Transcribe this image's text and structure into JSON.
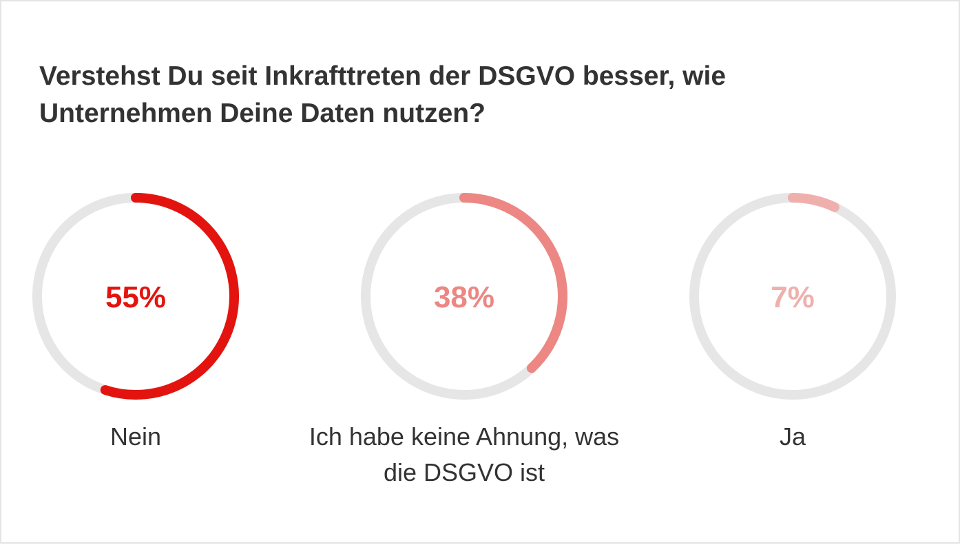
{
  "chart_data": {
    "type": "donut",
    "title": "Verstehst Du seit Inkrafttreten der DSGVO besser, wie Unternehmen Deine Daten nutzen?",
    "categories": [
      "Nein",
      "Ich habe keine Ahnung, was die DSGVO ist",
      "Ja"
    ],
    "values": [
      55,
      38,
      7
    ],
    "value_labels": [
      "55%",
      "38%",
      "7%"
    ],
    "colors": [
      "#e3140f",
      "#ec8783",
      "#efb0ad"
    ]
  }
}
